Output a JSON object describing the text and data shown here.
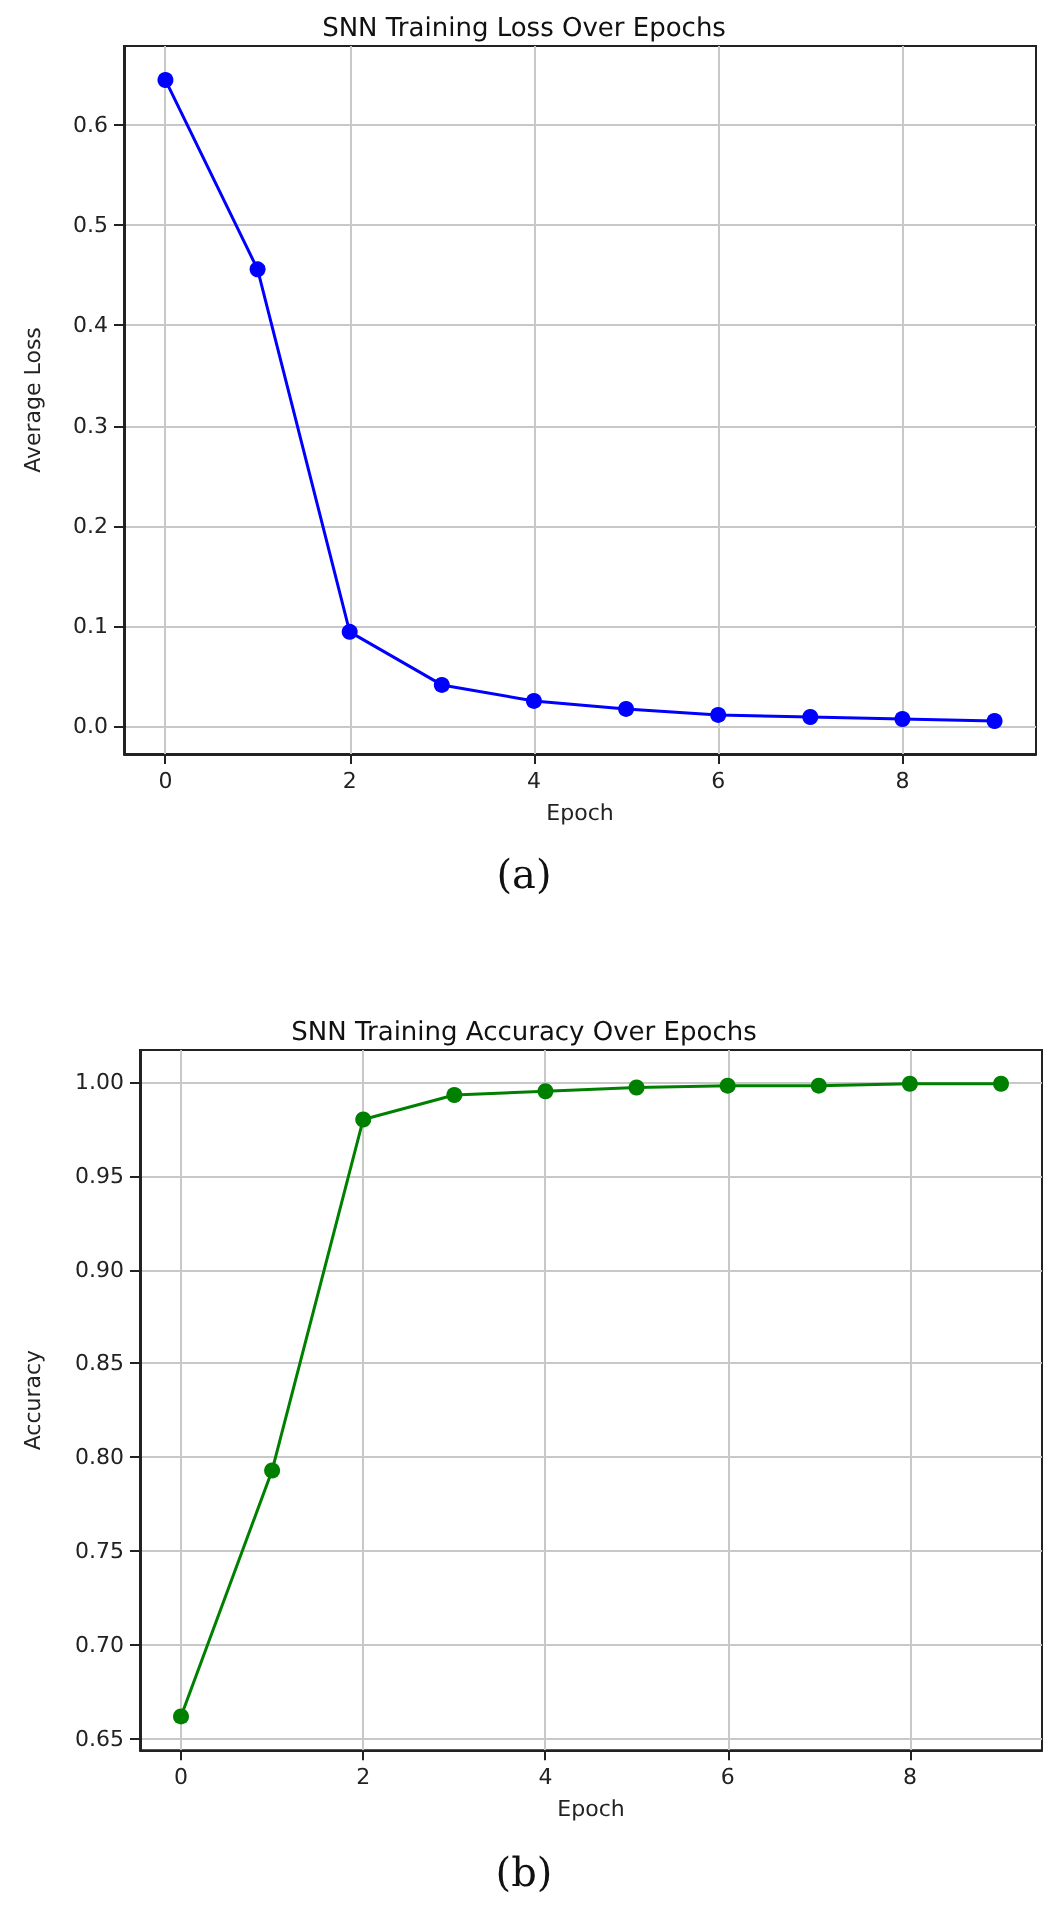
{
  "chart_data": [
    {
      "type": "line",
      "title": "SNN Training Loss Over Epochs",
      "xlabel": "Epoch",
      "ylabel": "Average Loss",
      "annotations": [
        "(a)"
      ],
      "x": [
        0,
        1,
        2,
        3,
        4,
        5,
        6,
        7,
        8,
        9
      ],
      "series": [
        {
          "color": "#0000ff",
          "values": [
            0.645,
            0.456,
            0.094,
            0.041,
            0.025,
            0.017,
            0.011,
            0.009,
            0.007,
            0.005
          ]
        }
      ],
      "xlim": [
        -0.45,
        9.45
      ],
      "xticks": [
        0,
        2,
        4,
        6,
        8
      ],
      "ylim": [
        -0.028,
        0.679
      ],
      "yticks": [
        {
          "value": 0,
          "label": "0.0"
        },
        0.1,
        0.2,
        0.3,
        0.4,
        0.5,
        0.6
      ],
      "grid": true,
      "marker": "circle",
      "line_style": "solid"
    },
    {
      "type": "line",
      "title": "SNN Training Accuracy Over Epochs",
      "xlabel": "Epoch",
      "ylabel": "Accuracy",
      "annotations": [
        "(b)"
      ],
      "x": [
        0,
        1,
        2,
        3,
        4,
        5,
        6,
        7,
        8,
        9
      ],
      "series": [
        {
          "color": "#008000",
          "values": [
            0.662,
            0.793,
            0.98,
            0.993,
            0.995,
            0.997,
            0.998,
            0.998,
            0.999,
            0.999
          ]
        }
      ],
      "xlim": [
        -0.45,
        9.45
      ],
      "xticks": [
        0,
        2,
        4,
        6,
        8
      ],
      "ylim": [
        0.644,
        1.017
      ],
      "yticks": [
        0.65,
        {
          "value": 0.7,
          "label": "0.70"
        },
        0.75,
        {
          "value": 0.8,
          "label": "0.80"
        },
        0.85,
        {
          "value": 0.9,
          "label": "0.90"
        },
        0.95,
        {
          "value": 1,
          "label": "1.00"
        }
      ],
      "grid": true,
      "marker": "circle",
      "line_style": "solid"
    }
  ]
}
